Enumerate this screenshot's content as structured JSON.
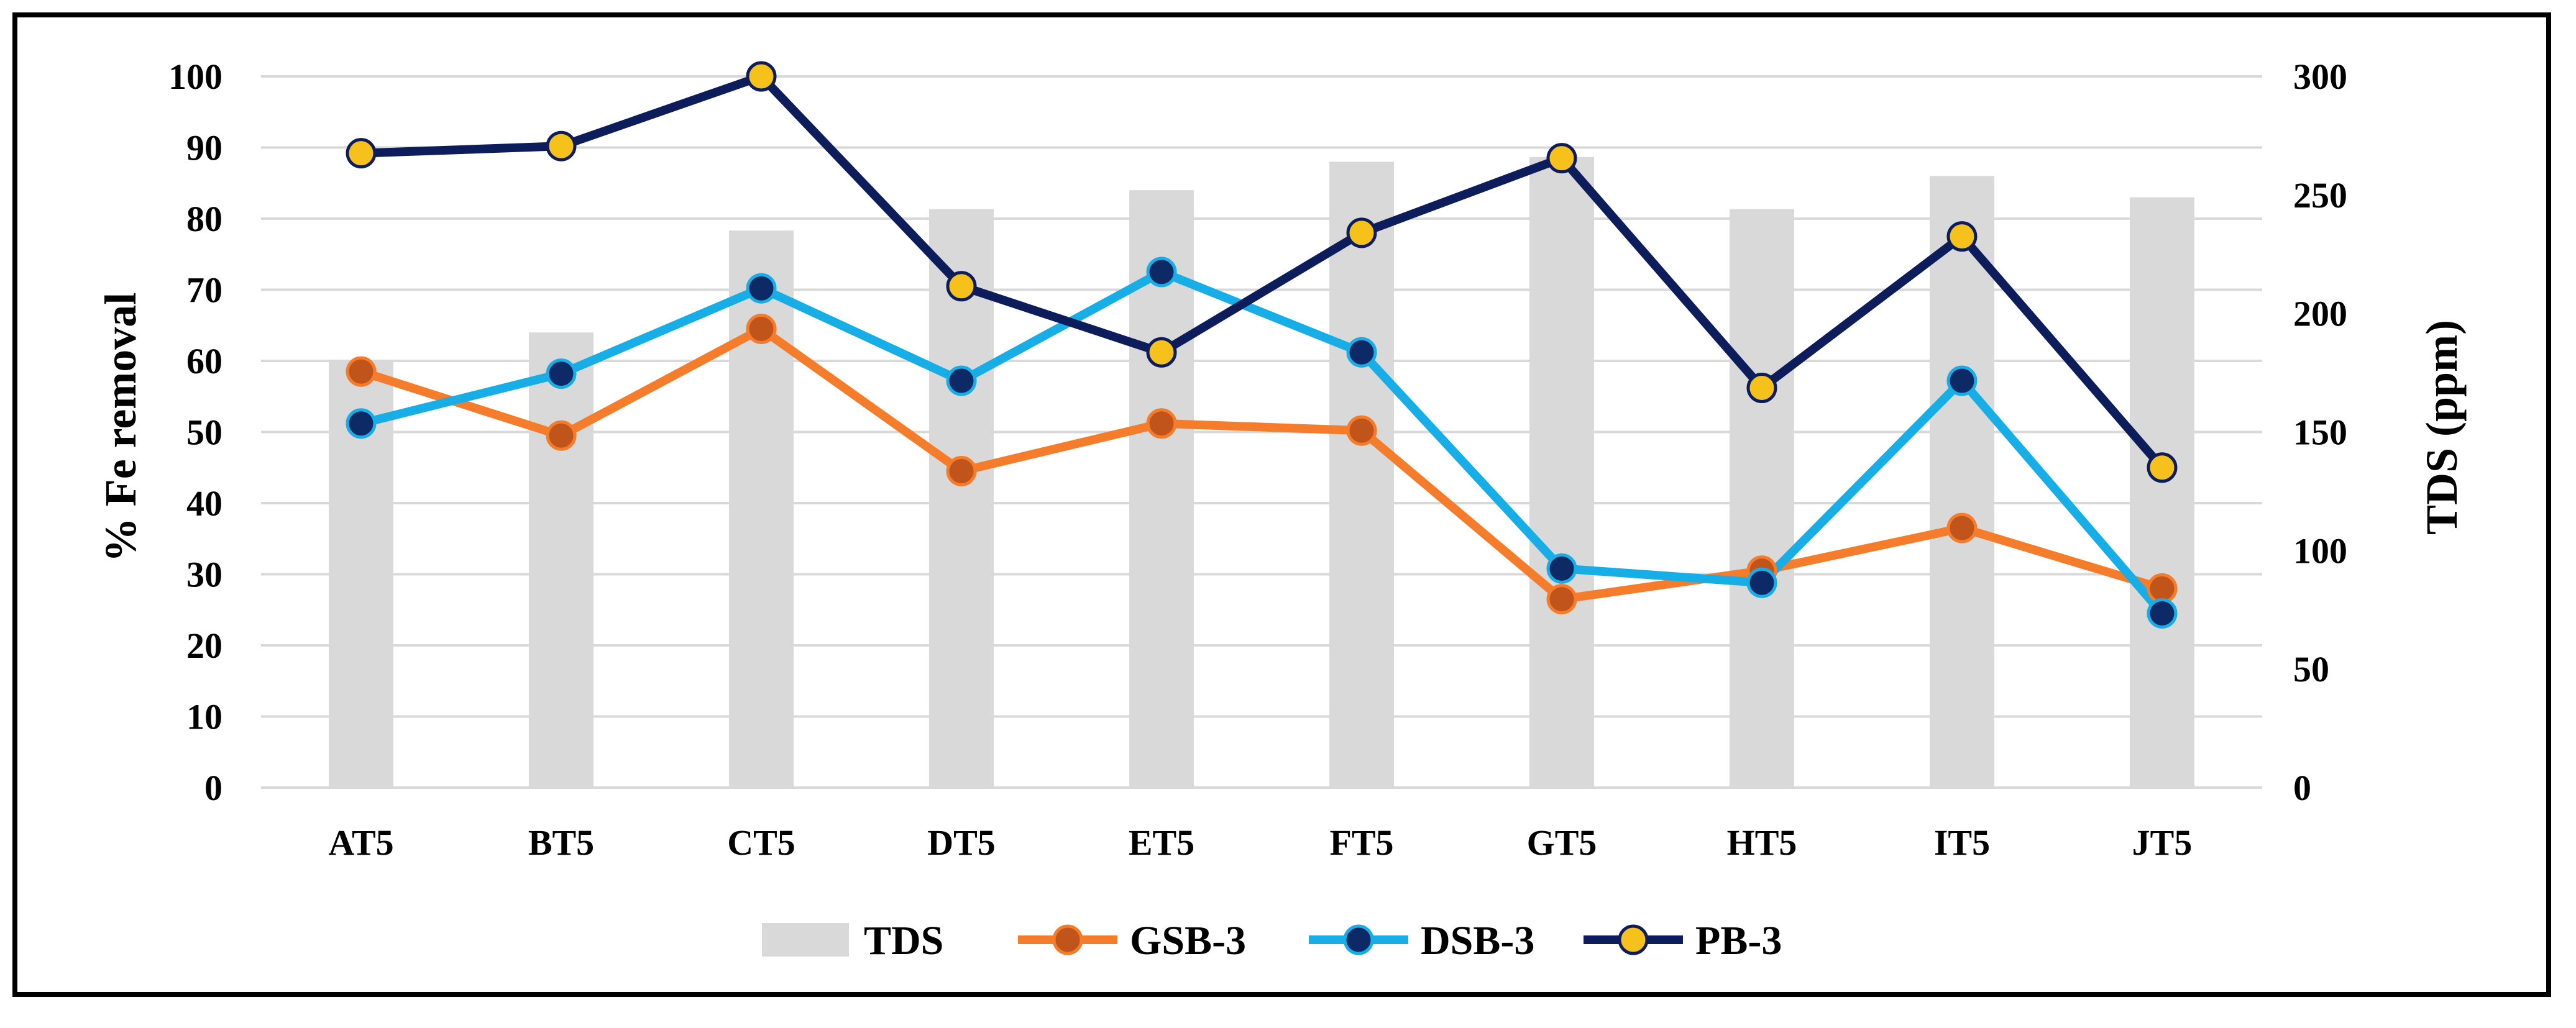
{
  "chart_data": {
    "type": "bar+line",
    "categories": [
      "AT5",
      "BT5",
      "CT5",
      "DT5",
      "ET5",
      "FT5",
      "GT5",
      "HT5",
      "IT5",
      "JT5"
    ],
    "bar_series": {
      "name": "TDS",
      "axis": "right",
      "color": "#d9d9d9",
      "values": [
        180,
        192,
        235,
        244,
        252,
        264,
        266,
        244,
        258,
        249
      ]
    },
    "series": [
      {
        "name": "GSB-3",
        "axis": "left",
        "line_color": "#f47c2a",
        "marker_fill": "#c0541a",
        "values": [
          58.5,
          49.5,
          64.5,
          44.5,
          51.2,
          50.2,
          26.5,
          30.5,
          36.5,
          28.0
        ]
      },
      {
        "name": "DSB-3",
        "axis": "left",
        "line_color": "#17aee8",
        "marker_fill": "#0d2a66",
        "values": [
          51.2,
          58.2,
          70.2,
          57.2,
          72.5,
          61.2,
          30.8,
          28.8,
          57.2,
          24.5
        ]
      },
      {
        "name": "PB-3",
        "axis": "left",
        "line_color": "#0d1d5c",
        "marker_fill": "#f5c11a",
        "values": [
          89.2,
          90.2,
          100.0,
          70.5,
          61.2,
          78.0,
          88.5,
          56.2,
          77.5,
          45.0
        ]
      }
    ],
    "y_left": {
      "label": "% Fe removal",
      "min": 0,
      "max": 100,
      "step": 10
    },
    "y_right": {
      "label": "TDS (ppm)",
      "min": 0,
      "max": 300,
      "step": 50
    },
    "grid": true,
    "legend_position": "bottom"
  }
}
